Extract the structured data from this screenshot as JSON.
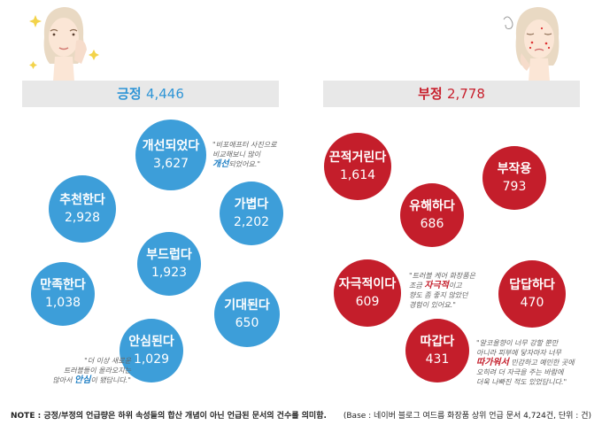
{
  "chart_data": [
    {
      "type": "bubble",
      "title": "긍정 4,446",
      "title_label": "긍정",
      "title_value": "4,446",
      "categories": [
        "개선되었다",
        "추천한다",
        "가볍다",
        "부드럽다",
        "만족한다",
        "기대된다",
        "안심된다"
      ],
      "values": [
        "3,627",
        "2,928",
        "2,202",
        "1,923",
        "1,038",
        "650",
        "1,029"
      ],
      "color": "#3d9ed9"
    },
    {
      "type": "bubble",
      "title": "부정 2,778",
      "title_label": "부정",
      "title_value": "2,778",
      "categories": [
        "끈적거린다",
        "부작용",
        "유해하다",
        "자극적이다",
        "답답하다",
        "따갑다"
      ],
      "values": [
        "1,614",
        "793",
        "686",
        "609",
        "470",
        "431"
      ],
      "color": "#c41e2b"
    }
  ],
  "quotes": {
    "q1": {
      "pre": "\"비포애프터 사진으로\n비교해보니 많이\n",
      "hl": "개선",
      "post": "되었어요.\""
    },
    "q2": {
      "pre": "\"더 이상 새로운\n트러블들이 올라오지는\n않아서 ",
      "hl": "안심",
      "post": "이 됐답니다.\""
    },
    "q3": {
      "pre": "\"트러블 케어 화장품은\n조금 ",
      "hl": "자극적",
      "post": "이고\n향도 좀 좋지 않았던\n경험이 있어요.\""
    },
    "q4": {
      "pre": "\"알코올향이 너무 강할 뿐만\n아니라 피부에 닿자마자 너무\n",
      "hl": "따가워서",
      "post": " 민감하고 예민한 곳에\n오히려 더 자극을 주는 바람에\n더욱 나빠진 적도 있었답니다.\""
    }
  },
  "footer": {
    "note": "NOTE : 긍정/부정의 언급량은 하위 속성들의 합산 개념이 아닌 언급된 문서의 건수를 의미함.",
    "base": "(Base : 네이버 블로그 여드름 화장품 상위 언급 문서 4,724건, 단위 : 건)"
  },
  "colors": {
    "positive": "#3d9ed9",
    "negative": "#c41e2b",
    "header_bg": "#e8e8e8"
  }
}
